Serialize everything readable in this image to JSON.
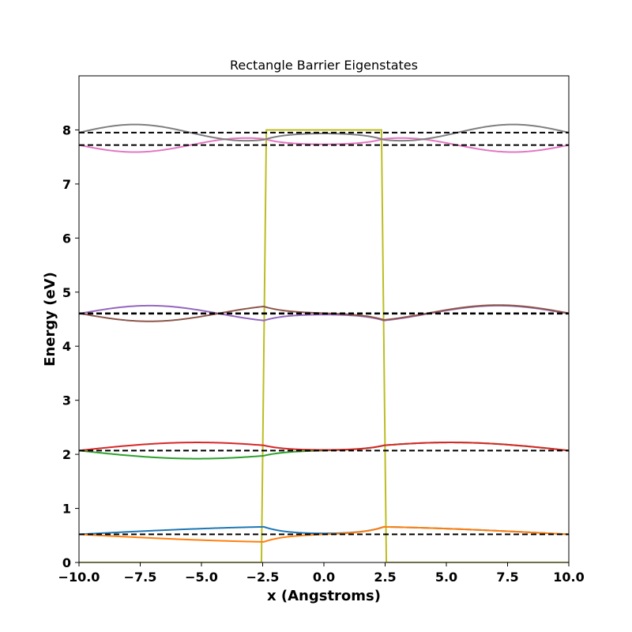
{
  "chart_data": {
    "type": "line",
    "title": "Rectangle Barrier Eigenstates",
    "xlabel": "x (Angstroms)",
    "ylabel": "Energy (eV)",
    "xlim": [
      -10,
      10
    ],
    "ylim": [
      0,
      9
    ],
    "x_ticks": [
      -10,
      -7.5,
      -5,
      -2.5,
      0,
      2.5,
      5,
      7.5,
      10
    ],
    "x_tick_labels": [
      "−10.0",
      "−7.5",
      "−5.0",
      "−2.5",
      "0.0",
      "2.5",
      "5.0",
      "7.5",
      "10.0"
    ],
    "y_ticks": [
      0,
      1,
      2,
      3,
      4,
      5,
      6,
      7,
      8
    ],
    "y_tick_labels": [
      "0",
      "1",
      "2",
      "3",
      "4",
      "5",
      "6",
      "7",
      "8"
    ],
    "grid": false,
    "legend": "none",
    "barrier": {
      "color": "#bcbd22",
      "height": 8.0,
      "points": [
        [
          -10,
          0
        ],
        [
          -2.55,
          0
        ],
        [
          -2.35,
          8.0
        ],
        [
          2.35,
          8.0
        ],
        [
          2.55,
          0
        ],
        [
          10,
          0
        ]
      ]
    },
    "energy_levels": [
      0.52,
      2.07,
      4.6,
      4.61,
      7.72,
      7.95
    ],
    "level_style": {
      "color": "#000000",
      "dash": "dashed"
    },
    "wavefunctions": [
      {
        "color": "#1f77b4",
        "energy": 0.52,
        "amplitude_left": 0.15,
        "left_sign": 1,
        "amplitude_right": 0.15,
        "right_sign": 1,
        "k": 0.157
      },
      {
        "color": "#ff7f0e",
        "energy": 0.52,
        "amplitude_left": 0.15,
        "left_sign": -1,
        "amplitude_right": 0.15,
        "right_sign": 1,
        "k": 0.157
      },
      {
        "color": "#2ca02c",
        "energy": 2.07,
        "amplitude_left": 0.15,
        "left_sign": -1,
        "amplitude_right": 0.15,
        "right_sign": 1,
        "k": 0.325
      },
      {
        "color": "#d62728",
        "energy": 2.07,
        "amplitude_left": 0.15,
        "left_sign": 1,
        "amplitude_right": 0.15,
        "right_sign": 1,
        "k": 0.325
      },
      {
        "color": "#9467bd",
        "energy": 4.6,
        "amplitude_left": 0.15,
        "left_sign": 1,
        "amplitude_right": 0.15,
        "right_sign": 1,
        "k": 0.546
      },
      {
        "color": "#8c564b",
        "energy": 4.61,
        "amplitude_left": 0.15,
        "left_sign": -1,
        "amplitude_right": 0.15,
        "right_sign": 1,
        "k": 0.546
      },
      {
        "color": "#e377c2",
        "energy": 7.72,
        "amplitude_left": 0.13,
        "left_sign": -1,
        "amplitude_right": 0.13,
        "right_sign": -1,
        "k": 0.69
      },
      {
        "color": "#7f7f7f",
        "energy": 7.95,
        "amplitude_left": 0.15,
        "left_sign": 1,
        "amplitude_right": 0.15,
        "right_sign": 1,
        "k": 0.69
      }
    ]
  }
}
